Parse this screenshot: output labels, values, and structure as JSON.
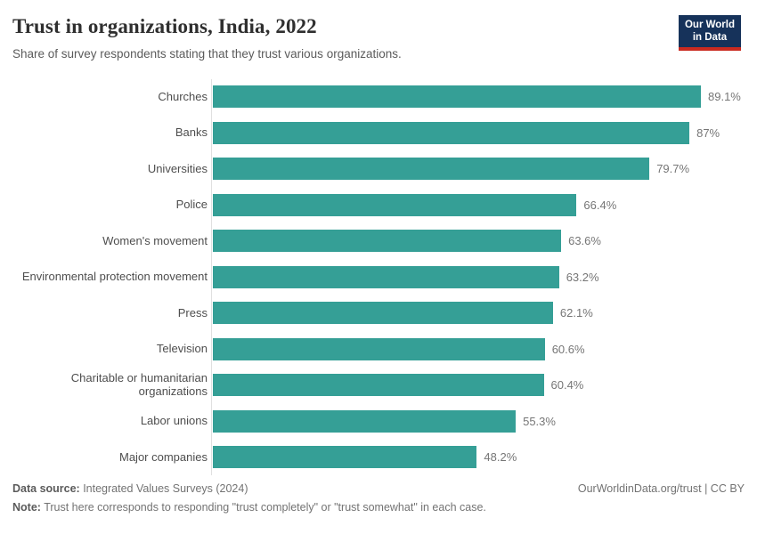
{
  "header": {
    "title": "Trust in organizations, India, 2022",
    "subtitle": "Share of survey respondents stating that they trust various organizations.",
    "logo": {
      "line1": "Our World",
      "line2": "in Data"
    }
  },
  "chart_data": {
    "type": "bar",
    "orientation": "horizontal",
    "title": "Trust in organizations, India, 2022",
    "subtitle": "Share of survey respondents stating that they trust various organizations.",
    "categories": [
      "Churches",
      "Banks",
      "Universities",
      "Police",
      "Women's movement",
      "Environmental protection movement",
      "Press",
      "Television",
      "Charitable or humanitarian organizations",
      "Labor unions",
      "Major companies"
    ],
    "values": [
      89.1,
      87,
      79.7,
      66.4,
      63.6,
      63.2,
      62.1,
      60.6,
      60.4,
      55.3,
      48.2
    ],
    "value_labels": [
      "89.1%",
      "87%",
      "79.7%",
      "66.4%",
      "63.6%",
      "63.2%",
      "62.1%",
      "60.6%",
      "60.4%",
      "55.3%",
      "48.2%"
    ],
    "value_suffix": "%",
    "xlim": [
      0,
      100
    ],
    "grid": false,
    "legend": "none",
    "bar_color": "#359f96"
  },
  "colors": {
    "bar_teal": "#359f96",
    "axis_line": "#e0e0e0",
    "logo_navy": "#16325a",
    "logo_red": "#ca2a20",
    "title_text": "#2f2f2f",
    "muted_text": "#737373"
  },
  "footer": {
    "data_source_label": "Data source:",
    "data_source_value": " Integrated Values Surveys (2024)",
    "note_label": "Note:",
    "note_value": " Trust here corresponds to responding \"trust completely\" or \"trust somewhat\" in each case.",
    "link": "OurWorldinData.org/trust",
    "separator": " | ",
    "license": "CC BY"
  }
}
